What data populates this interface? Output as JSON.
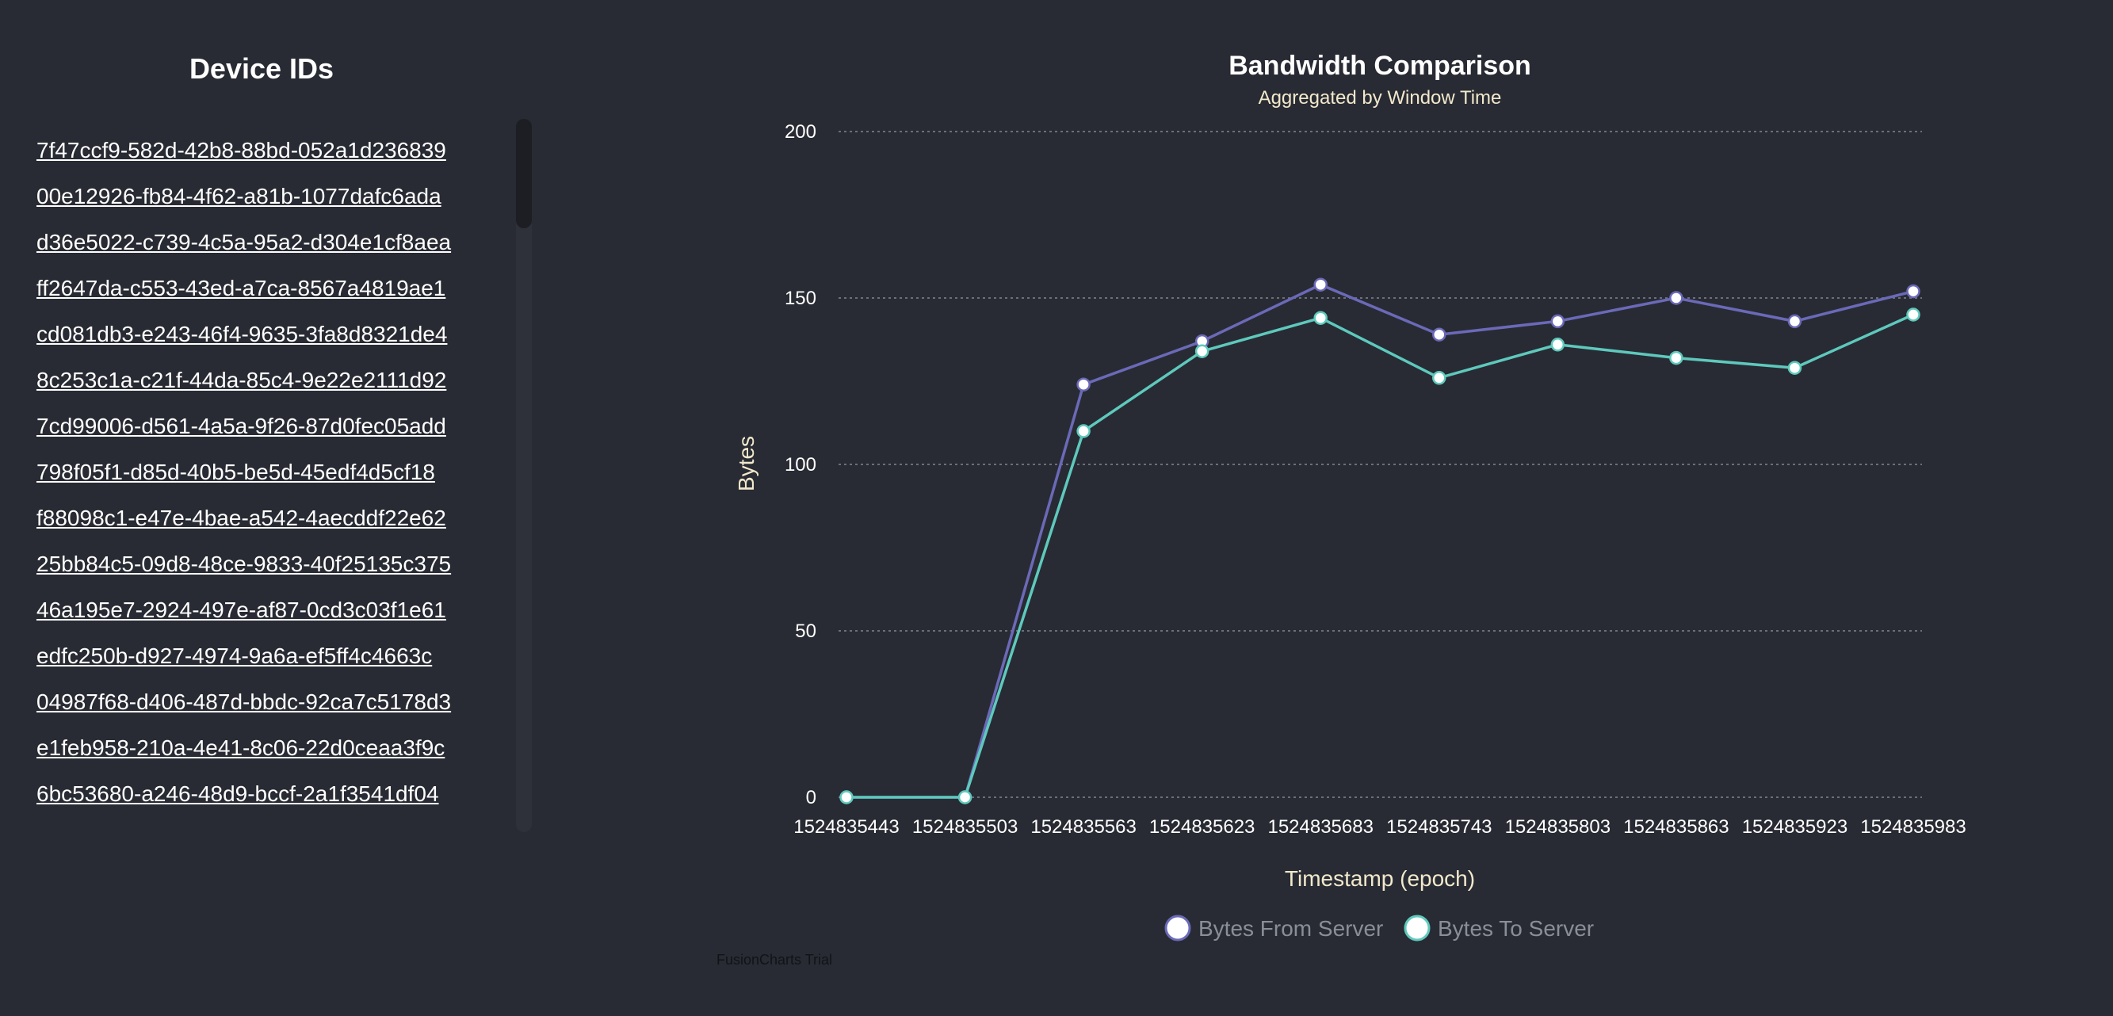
{
  "sidebar": {
    "title": "Device IDs",
    "devices": [
      "7f47ccf9-582d-42b8-88bd-052a1d236839",
      "00e12926-fb84-4f62-a81b-1077dafc6ada",
      "d36e5022-c739-4c5a-95a2-d304e1cf8aea",
      "ff2647da-c553-43ed-a7ca-8567a4819ae1",
      "cd081db3-e243-46f4-9635-3fa8d8321de4",
      "8c253c1a-c21f-44da-85c4-9e22e2111d92",
      "7cd99006-d561-4a5a-9f26-87d0fec05add",
      "798f05f1-d85d-40b5-be5d-45edf4d5cf18",
      "f88098c1-e47e-4bae-a542-4aecddf22e62",
      "25bb84c5-09d8-48ce-9833-40f25135c375",
      "46a195e7-2924-497e-af87-0cd3c03f1e61",
      "edfc250b-d927-4974-9a6a-ef5ff4c4663c",
      "04987f68-d406-487d-bbdc-92ca7c5178d3",
      "e1feb958-210a-4e41-8c06-22d0ceaa3f9c",
      "6bc53680-a246-48d9-bccf-2a1f3541df04"
    ]
  },
  "chart_data": {
    "type": "line",
    "title": "Bandwidth Comparison",
    "subtitle": "Aggregated by Window Time",
    "xlabel": "Timestamp (epoch)",
    "ylabel": "Bytes",
    "ylim": [
      0,
      200
    ],
    "yticks": [
      0,
      50,
      100,
      150,
      200
    ],
    "grid": true,
    "legend_position": "bottom",
    "categories": [
      "1524835443",
      "1524835503",
      "1524835563",
      "1524835623",
      "1524835683",
      "1524835743",
      "1524835803",
      "1524835863",
      "1524835923",
      "1524835983"
    ],
    "series": [
      {
        "name": "Bytes From Server",
        "color": "#6b69b8",
        "values": [
          0,
          0,
          124,
          137,
          154,
          139,
          143,
          150,
          143,
          152
        ]
      },
      {
        "name": "Bytes To Server",
        "color": "#5ec9bd",
        "values": [
          0,
          0,
          110,
          134,
          144,
          126,
          136,
          132,
          129,
          145
        ]
      }
    ]
  },
  "watermark": "FusionCharts Trial",
  "colors": {
    "background": "#282b33",
    "grid": "#6b6f78",
    "marker_fill": "#ffffff"
  }
}
